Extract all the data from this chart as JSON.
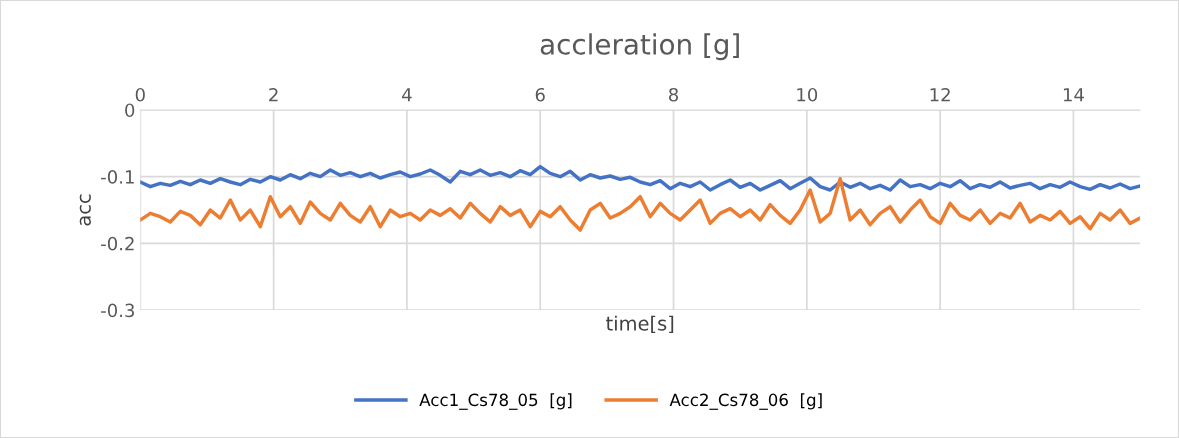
{
  "chart_data": {
    "type": "line",
    "title": "accleration [g]",
    "xlabel": "time[s]",
    "ylabel": "acc",
    "x": [
      0,
      0.15,
      0.3,
      0.45,
      0.6,
      0.75,
      0.9,
      1.05,
      1.2,
      1.35,
      1.5,
      1.65,
      1.8,
      1.95,
      2.1,
      2.25,
      2.4,
      2.55,
      2.7,
      2.85,
      3.0,
      3.15,
      3.3,
      3.45,
      3.6,
      3.75,
      3.9,
      4.05,
      4.2,
      4.35,
      4.5,
      4.65,
      4.8,
      4.95,
      5.1,
      5.25,
      5.4,
      5.55,
      5.7,
      5.85,
      6.0,
      6.15,
      6.3,
      6.45,
      6.6,
      6.75,
      6.9,
      7.05,
      7.2,
      7.35,
      7.5,
      7.65,
      7.8,
      7.95,
      8.1,
      8.25,
      8.4,
      8.55,
      8.7,
      8.85,
      9.0,
      9.15,
      9.3,
      9.45,
      9.6,
      9.75,
      9.9,
      10.05,
      10.2,
      10.35,
      10.5,
      10.65,
      10.8,
      10.95,
      11.1,
      11.25,
      11.4,
      11.55,
      11.7,
      11.85,
      12.0,
      12.15,
      12.3,
      12.45,
      12.6,
      12.75,
      12.9,
      13.05,
      13.2,
      13.35,
      13.5,
      13.65,
      13.8,
      13.95,
      14.1,
      14.25,
      14.4,
      14.55,
      14.7,
      14.85,
      15.0
    ],
    "series": [
      {
        "name": "Acc1_Cs78_05  [g]",
        "color": "#4472c4",
        "values": [
          -0.108,
          -0.115,
          -0.11,
          -0.113,
          -0.107,
          -0.112,
          -0.105,
          -0.11,
          -0.103,
          -0.108,
          -0.112,
          -0.104,
          -0.108,
          -0.1,
          -0.105,
          -0.097,
          -0.103,
          -0.095,
          -0.1,
          -0.09,
          -0.098,
          -0.094,
          -0.1,
          -0.095,
          -0.102,
          -0.097,
          -0.093,
          -0.1,
          -0.096,
          -0.09,
          -0.098,
          -0.108,
          -0.092,
          -0.097,
          -0.09,
          -0.098,
          -0.094,
          -0.1,
          -0.091,
          -0.097,
          -0.085,
          -0.095,
          -0.1,
          -0.092,
          -0.105,
          -0.097,
          -0.102,
          -0.099,
          -0.104,
          -0.101,
          -0.108,
          -0.112,
          -0.106,
          -0.118,
          -0.11,
          -0.115,
          -0.108,
          -0.12,
          -0.112,
          -0.105,
          -0.116,
          -0.11,
          -0.12,
          -0.113,
          -0.106,
          -0.118,
          -0.11,
          -0.102,
          -0.115,
          -0.12,
          -0.108,
          -0.116,
          -0.11,
          -0.118,
          -0.113,
          -0.12,
          -0.105,
          -0.115,
          -0.112,
          -0.118,
          -0.11,
          -0.115,
          -0.106,
          -0.118,
          -0.112,
          -0.116,
          -0.108,
          -0.117,
          -0.113,
          -0.11,
          -0.118,
          -0.112,
          -0.116,
          -0.108,
          -0.115,
          -0.119,
          -0.112,
          -0.117,
          -0.111,
          -0.118,
          -0.114
        ]
      },
      {
        "name": "Acc2_Cs78_06  [g]",
        "color": "#ed7d31",
        "values": [
          -0.165,
          -0.155,
          -0.16,
          -0.168,
          -0.152,
          -0.158,
          -0.172,
          -0.15,
          -0.162,
          -0.135,
          -0.165,
          -0.15,
          -0.175,
          -0.13,
          -0.16,
          -0.145,
          -0.17,
          -0.138,
          -0.155,
          -0.165,
          -0.14,
          -0.158,
          -0.168,
          -0.145,
          -0.175,
          -0.15,
          -0.16,
          -0.155,
          -0.165,
          -0.15,
          -0.158,
          -0.148,
          -0.162,
          -0.14,
          -0.155,
          -0.168,
          -0.145,
          -0.158,
          -0.15,
          -0.175,
          -0.152,
          -0.16,
          -0.145,
          -0.165,
          -0.18,
          -0.15,
          -0.14,
          -0.162,
          -0.155,
          -0.145,
          -0.13,
          -0.16,
          -0.14,
          -0.155,
          -0.165,
          -0.15,
          -0.135,
          -0.17,
          -0.155,
          -0.148,
          -0.16,
          -0.15,
          -0.165,
          -0.142,
          -0.158,
          -0.17,
          -0.15,
          -0.12,
          -0.168,
          -0.155,
          -0.103,
          -0.165,
          -0.15,
          -0.172,
          -0.155,
          -0.145,
          -0.168,
          -0.15,
          -0.135,
          -0.16,
          -0.17,
          -0.14,
          -0.158,
          -0.165,
          -0.15,
          -0.17,
          -0.155,
          -0.162,
          -0.14,
          -0.168,
          -0.158,
          -0.165,
          -0.152,
          -0.17,
          -0.16,
          -0.178,
          -0.155,
          -0.165,
          -0.15,
          -0.17,
          -0.162
        ]
      }
    ],
    "xlim": [
      0,
      15
    ],
    "xticks": [
      0,
      2,
      4,
      6,
      8,
      10,
      12,
      14
    ],
    "ylim": [
      -0.3,
      0
    ],
    "yticks": [
      -0.3,
      -0.2,
      -0.1,
      0
    ],
    "grid": true,
    "legend": "bottom",
    "marker": "none",
    "line_style": "solid"
  }
}
